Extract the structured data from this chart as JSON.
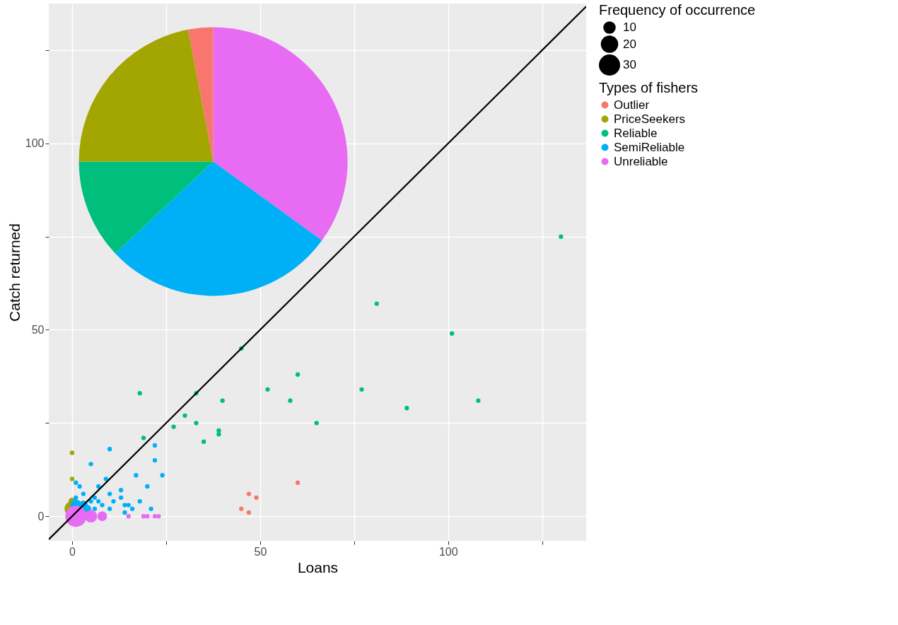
{
  "chart_data": [
    {
      "type": "bubble",
      "xlabel": "Loans",
      "ylabel": "Catch returned",
      "legend_title": "Types of fishers",
      "annotations": [
        "Frequency of occurrence"
      ],
      "size_legend": [
        10,
        20,
        30
      ],
      "legend": "right",
      "grid": true,
      "marker": "circle",
      "xlim": [
        -6.2,
        136.7
      ],
      "ylim": [
        -6.6,
        137.5
      ],
      "xticks": [
        0,
        {
          "value": 25,
          "label": null
        },
        50,
        {
          "value": 75,
          "label": null
        },
        100,
        {
          "value": 125,
          "label": null
        }
      ],
      "yticks": [
        0,
        {
          "value": 25,
          "label": null
        },
        50,
        {
          "value": 75,
          "label": null
        },
        100,
        {
          "value": 125,
          "label": null
        }
      ],
      "series": [
        {
          "name": "Outlier",
          "color": "#f8766d",
          "x": [
            45,
            47,
            49,
            47,
            60
          ],
          "values": [
            2,
            6,
            5,
            1,
            9
          ],
          "sizes": [
            1,
            1,
            1,
            1,
            1
          ]
        },
        {
          "name": "PriceSeekers",
          "color": "#a3a500",
          "x": [
            0,
            0,
            0,
            0
          ],
          "values": [
            17,
            10,
            2,
            4
          ],
          "sizes": [
            1,
            1,
            15,
            3
          ]
        },
        {
          "name": "Reliable",
          "color": "#00bf7d",
          "x": [
            19,
            27,
            45,
            18,
            33,
            40,
            52,
            60,
            58,
            65,
            30,
            33,
            39,
            39,
            35,
            130,
            81,
            101,
            77,
            89,
            108
          ],
          "values": [
            21,
            24,
            45,
            33,
            33,
            31,
            34,
            38,
            31,
            25,
            27,
            25,
            23,
            22,
            20,
            75,
            57,
            49,
            34,
            29,
            31
          ],
          "sizes": [
            1,
            1,
            1,
            1,
            1,
            1,
            1,
            1,
            1,
            1,
            1,
            1,
            1,
            1,
            1,
            1,
            1,
            1,
            1,
            1,
            1
          ]
        },
        {
          "name": "SemiReliable",
          "color": "#00b0f6",
          "x": [
            10,
            22,
            5,
            22,
            9,
            17,
            24,
            1,
            2,
            7,
            20,
            3,
            13,
            10,
            6,
            13,
            7,
            11,
            18,
            8,
            14,
            15,
            16,
            21,
            10,
            14,
            6,
            5,
            1,
            1,
            3,
            4
          ],
          "values": [
            18,
            19,
            14,
            15,
            10,
            11,
            11,
            9,
            8,
            8,
            8,
            6,
            7,
            6,
            5,
            5,
            4,
            4,
            4,
            3,
            3,
            3,
            2,
            2,
            2,
            1,
            2,
            4,
            5,
            3,
            3,
            2
          ],
          "sizes": [
            1,
            1,
            1,
            1,
            1,
            1,
            1,
            1,
            1,
            1,
            1,
            1,
            1,
            1,
            1,
            1,
            1,
            1,
            1,
            1,
            1,
            1,
            1,
            1,
            1,
            1,
            1,
            1,
            1,
            8,
            5,
            4
          ]
        },
        {
          "name": "Unreliable",
          "color": "#e76bf3",
          "x": [
            1,
            5,
            8,
            15,
            19,
            20,
            22,
            23
          ],
          "values": [
            0,
            0,
            0,
            0,
            0,
            0,
            0,
            0
          ],
          "sizes": [
            30,
            10,
            6,
            1,
            1,
            1,
            1,
            1
          ]
        },
        {
          "type": "line",
          "marker": "none",
          "color": "#000000",
          "x": [
            -6.2,
            136.7
          ],
          "values": [
            -6.2,
            136.7
          ]
        }
      ]
    },
    {
      "type": "pie",
      "categories": [
        null,
        null,
        null,
        null,
        null
      ],
      "values": [
        35,
        28,
        12,
        22,
        3
      ],
      "colors": [
        "#e76bf3",
        "#00b0f6",
        "#00bf7d",
        "#a3a500",
        "#f8766d"
      ]
    }
  ]
}
